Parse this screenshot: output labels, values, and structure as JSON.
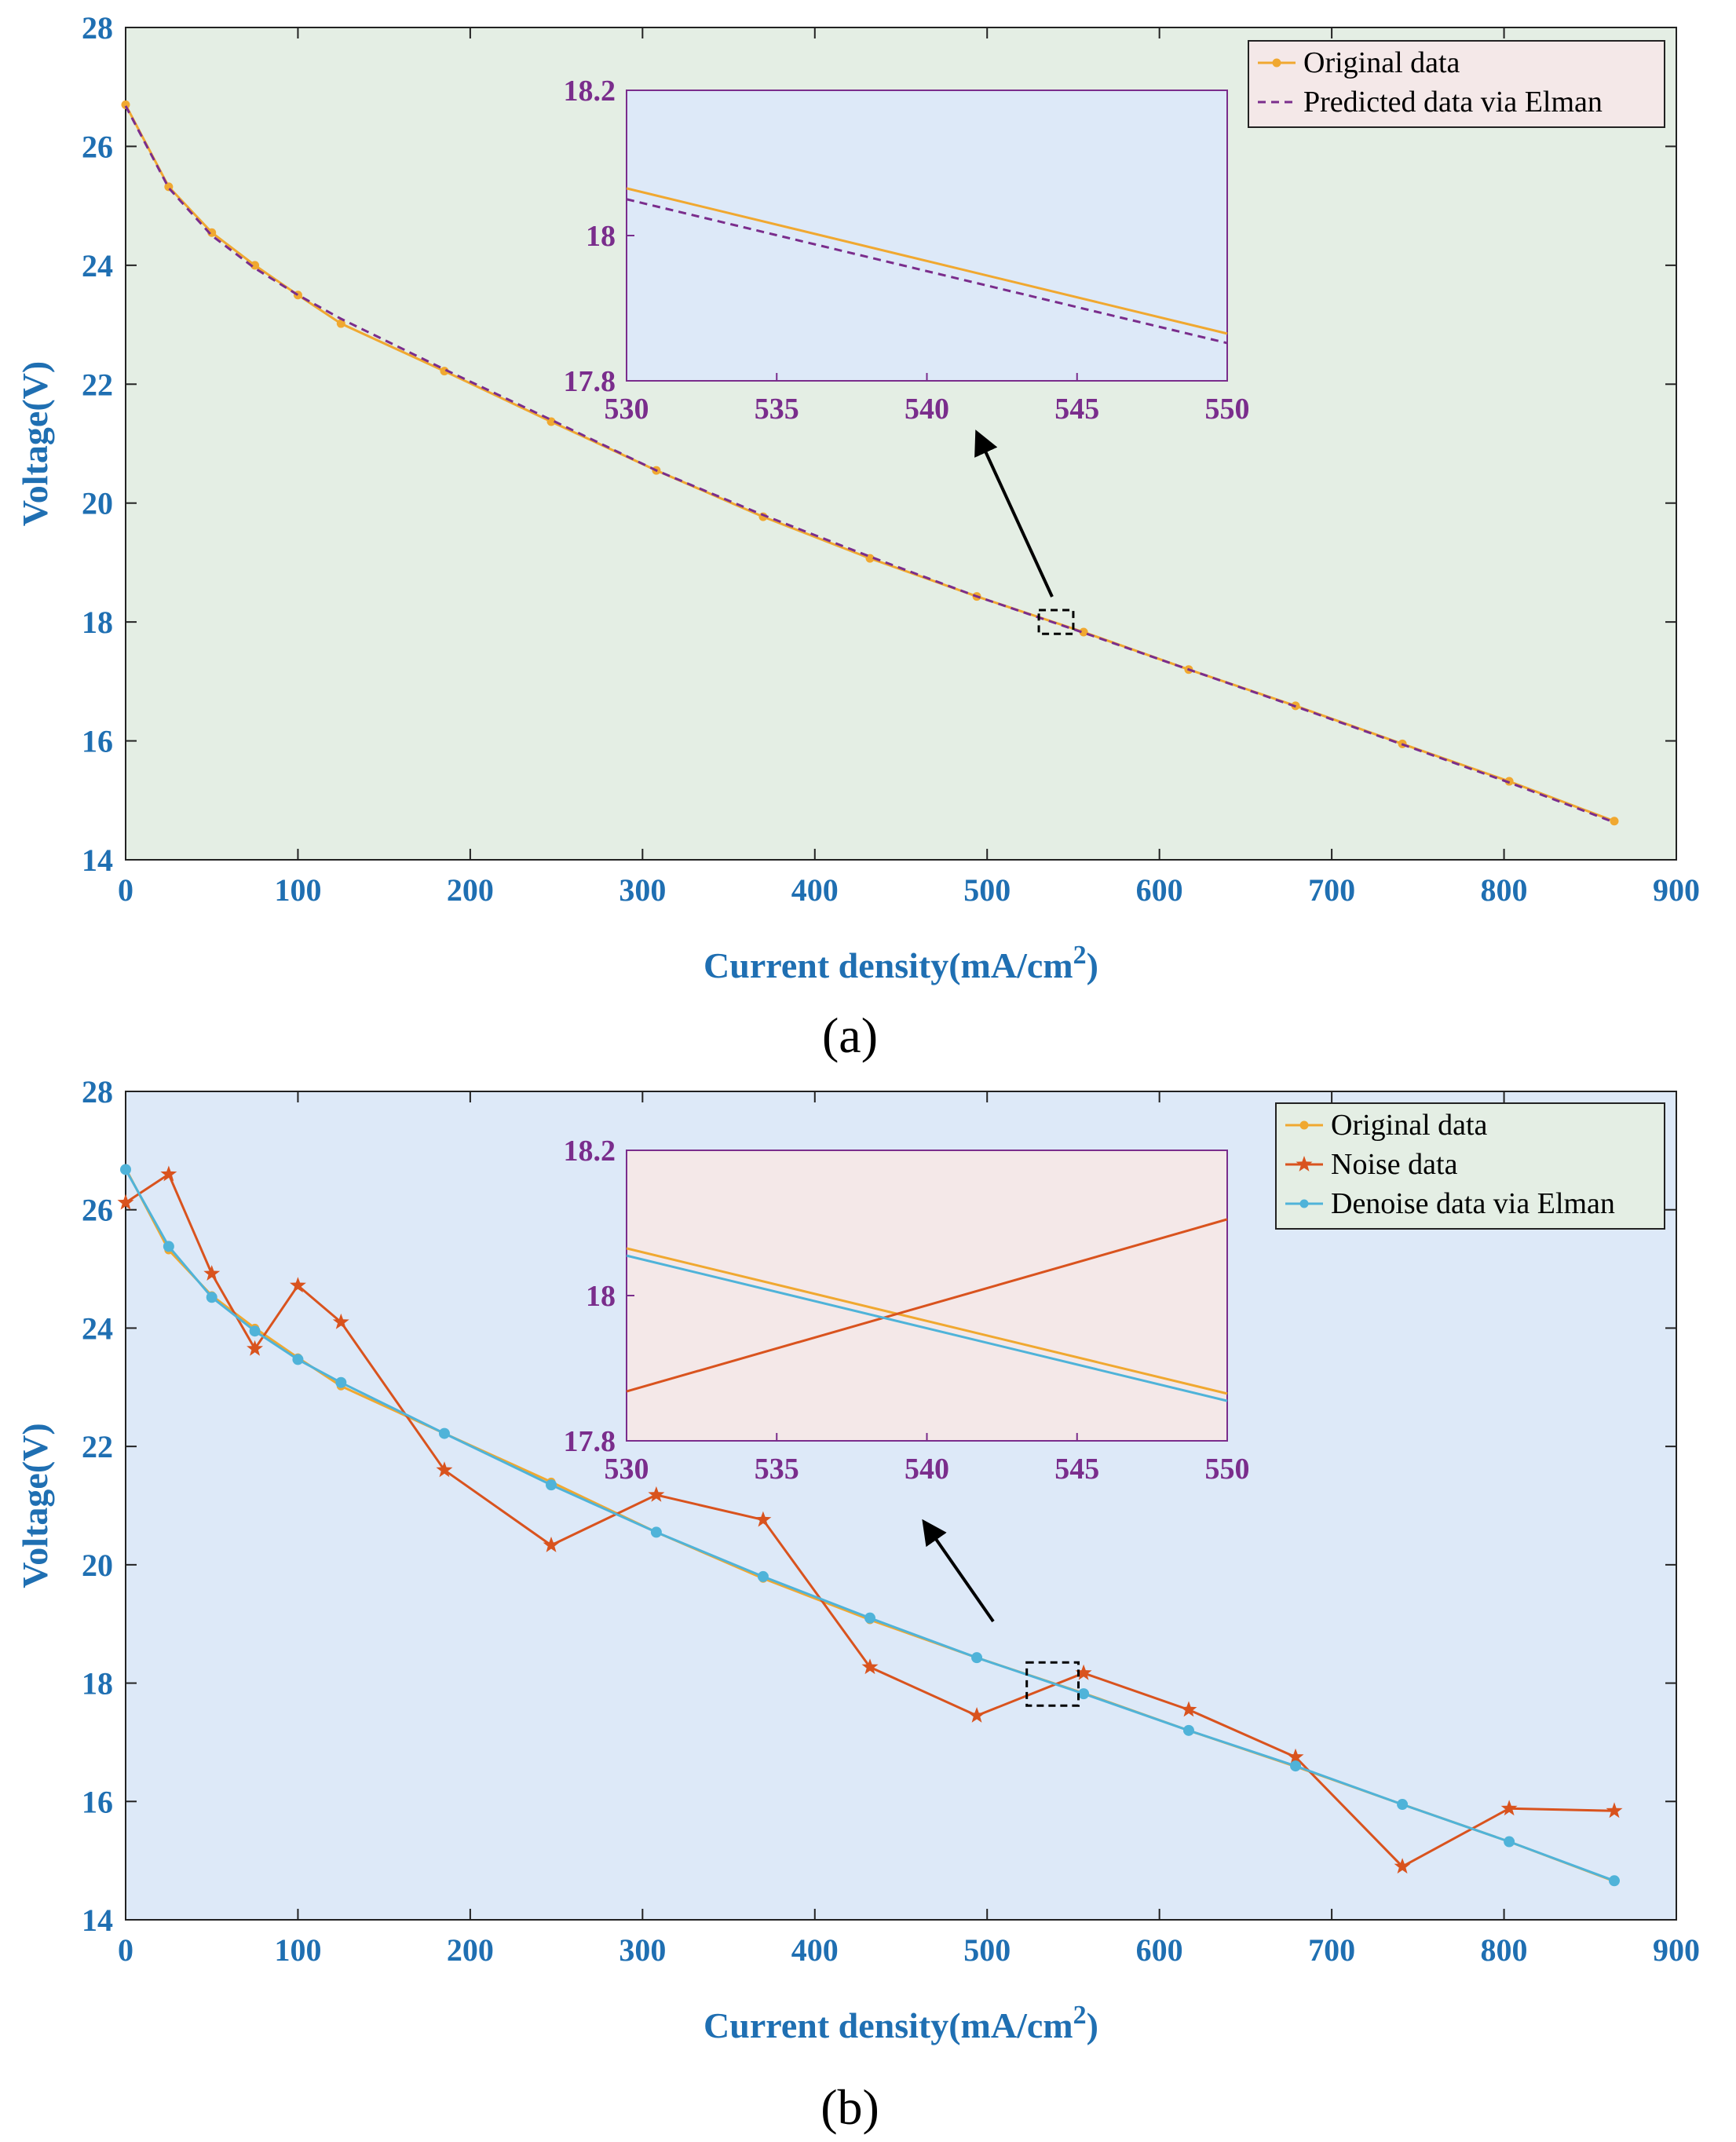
{
  "colors": {
    "original": "#f0a830",
    "predicted": "#7a2d8c",
    "noise": "#d9531e",
    "denoise": "#4fb3d9",
    "axis_text": "#1f6fb2",
    "inset_text": "#7a2d8c",
    "bg_a": "#e4eee4",
    "bg_b": "#dde9f8",
    "inset_bg_a": "#dde9f8",
    "inset_bg_b": "#f4e8e8",
    "legend_bg_a": "#f4e8e8",
    "legend_bg_b": "#e4eee4"
  },
  "chart_data": [
    {
      "type": "line",
      "panel_label": "(a)",
      "xlabel": "Current density(mA/cm",
      "xlabel_sup": "2",
      "xlabel_end": ")",
      "ylabel": "Voltage(V)",
      "xlim": [
        0,
        900
      ],
      "ylim": [
        14,
        28
      ],
      "xticks": [
        "0",
        "100",
        "200",
        "300",
        "400",
        "500",
        "600",
        "700",
        "800",
        "900"
      ],
      "yticks": [
        "14",
        "16",
        "18",
        "20",
        "22",
        "24",
        "26",
        "28"
      ],
      "legend": [
        "Original data",
        "Predicted data via Elman"
      ],
      "legend_position": "top-right",
      "series": [
        {
          "name": "Original data",
          "style": "solid-dot",
          "x": [
            0,
            25,
            50,
            75,
            100,
            125,
            185,
            247,
            308,
            370,
            432,
            494,
            556,
            617,
            679,
            741,
            803,
            864
          ],
          "y": [
            26.7,
            25.32,
            24.55,
            24.0,
            23.5,
            23.02,
            22.22,
            21.37,
            20.55,
            19.77,
            19.07,
            18.43,
            17.83,
            17.2,
            16.59,
            15.95,
            15.32,
            14.65
          ]
        },
        {
          "name": "Predicted data via Elman",
          "style": "dashed",
          "x": [
            0,
            25,
            50,
            75,
            100,
            125,
            185,
            247,
            308,
            370,
            432,
            494,
            556,
            617,
            679,
            741,
            803,
            864
          ],
          "y": [
            26.68,
            25.3,
            24.5,
            23.95,
            23.5,
            23.1,
            22.25,
            21.4,
            20.55,
            19.8,
            19.1,
            18.43,
            17.82,
            17.2,
            16.58,
            15.94,
            15.3,
            14.63
          ]
        }
      ],
      "zoom_box": {
        "xlim": [
          530,
          550
        ],
        "ylim": [
          17.8,
          18.2
        ]
      },
      "inset": {
        "xlim": [
          530,
          550
        ],
        "ylim": [
          17.8,
          18.2
        ],
        "xticks": [
          "530",
          "535",
          "540",
          "545",
          "550"
        ],
        "yticks": [
          "17.8",
          "18",
          "18.2"
        ],
        "series": [
          {
            "name": "Original data",
            "style": "solid",
            "x": [
              530,
              550
            ],
            "y": [
              18.065,
              17.865
            ]
          },
          {
            "name": "Predicted data via Elman",
            "style": "dashed",
            "x": [
              530,
              550
            ],
            "y": [
              18.05,
              17.852
            ]
          }
        ]
      }
    },
    {
      "type": "line",
      "panel_label": "(b)",
      "xlabel": "Current density(mA/cm",
      "xlabel_sup": "2",
      "xlabel_end": ")",
      "ylabel": "Voltage(V)",
      "xlim": [
        0,
        900
      ],
      "ylim": [
        14,
        28
      ],
      "xticks": [
        "0",
        "100",
        "200",
        "300",
        "400",
        "500",
        "600",
        "700",
        "800",
        "900"
      ],
      "yticks": [
        "14",
        "16",
        "18",
        "20",
        "22",
        "24",
        "26",
        "28"
      ],
      "legend": [
        "Original data",
        "Noise data",
        "Denoise data via Elman"
      ],
      "legend_position": "top-right",
      "series": [
        {
          "name": "Original data",
          "style": "solid-dot",
          "x": [
            0,
            25,
            50,
            75,
            100,
            125,
            185,
            247,
            308,
            370,
            432,
            494,
            556,
            617,
            679,
            741,
            803,
            864
          ],
          "y": [
            26.7,
            25.32,
            24.55,
            24.0,
            23.5,
            23.02,
            22.22,
            21.4,
            20.55,
            19.77,
            19.07,
            18.43,
            17.83,
            17.2,
            16.59,
            15.95,
            15.32,
            14.65
          ]
        },
        {
          "name": "Noise data",
          "style": "solid-star",
          "x": [
            0,
            25,
            50,
            75,
            100,
            125,
            185,
            247,
            308,
            370,
            432,
            494,
            556,
            617,
            679,
            741,
            803,
            864
          ],
          "y": [
            26.12,
            26.6,
            24.92,
            23.65,
            24.72,
            24.1,
            21.6,
            20.33,
            21.18,
            20.76,
            18.27,
            17.45,
            18.17,
            17.55,
            16.75,
            14.9,
            15.88,
            15.84
          ]
        },
        {
          "name": "Denoise data via Elman",
          "style": "solid-dot",
          "x": [
            0,
            25,
            50,
            75,
            100,
            125,
            185,
            247,
            308,
            370,
            432,
            494,
            556,
            617,
            679,
            741,
            803,
            864
          ],
          "y": [
            26.68,
            25.38,
            24.52,
            23.95,
            23.47,
            23.08,
            22.22,
            21.35,
            20.55,
            19.8,
            19.1,
            18.43,
            17.82,
            17.2,
            16.6,
            15.95,
            15.32,
            14.66
          ]
        }
      ],
      "zoom_box": {
        "xlim": [
          523,
          553
        ],
        "ylim": [
          17.62,
          18.35
        ]
      },
      "inset": {
        "xlim": [
          530,
          550
        ],
        "ylim": [
          17.8,
          18.2
        ],
        "xticks": [
          "530",
          "535",
          "540",
          "545",
          "550"
        ],
        "yticks": [
          "17.8",
          "18",
          "18.2"
        ],
        "series": [
          {
            "name": "Original data",
            "style": "solid",
            "x": [
              530,
              550
            ],
            "y": [
              18.065,
              17.865
            ]
          },
          {
            "name": "Noise data",
            "style": "solid",
            "x": [
              530,
              550
            ],
            "y": [
              17.868,
              18.105
            ]
          },
          {
            "name": "Denoise data via Elman",
            "style": "solid",
            "x": [
              530,
              550
            ],
            "y": [
              18.055,
              17.855
            ]
          }
        ]
      }
    }
  ]
}
